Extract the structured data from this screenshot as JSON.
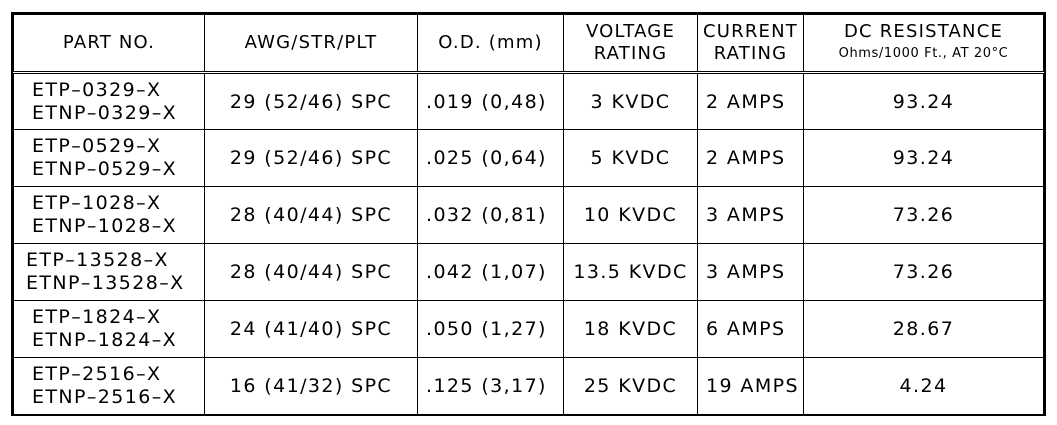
{
  "headers": {
    "part_no": "PART NO.",
    "awg": "AWG/STR/PLT",
    "od": "O.D. (mm)",
    "voltage_line1": "VOLTAGE",
    "voltage_line2": "RATING",
    "current_line1": "CURRENT",
    "current_line2": "RATING",
    "dc_line1": "DC RESISTANCE",
    "dc_line2": "Ohms/1000 Ft., AT 20°C"
  },
  "rows": [
    {
      "part1": "ETP–0329–X",
      "part2": "ETNP–0329–X",
      "awg": "29 (52/46) SPC",
      "od": ".019 (0,48)",
      "voltage": "3 KVDC",
      "current": "2 AMPS",
      "dc": "93.24"
    },
    {
      "part1": "ETP–0529–X",
      "part2": "ETNP–0529–X",
      "awg": "29 (52/46) SPC",
      "od": ".025 (0,64)",
      "voltage": "5 KVDC",
      "current": "2 AMPS",
      "dc": "93.24"
    },
    {
      "part1": "ETP–1028–X",
      "part2": "ETNP–1028–X",
      "awg": "28 (40/44) SPC",
      "od": ".032 (0,81)",
      "voltage": "10 KVDC",
      "current": "3 AMPS",
      "dc": "73.26"
    },
    {
      "part1": "ETP–13528–X",
      "part2": "ETNP–13528–X",
      "awg": "28 (40/44) SPC",
      "od": ".042 (1,07)",
      "voltage": "13.5 KVDC",
      "current": "3 AMPS",
      "dc": "73.26"
    },
    {
      "part1": "ETP–1824–X",
      "part2": "ETNP–1824–X",
      "awg": "24 (41/40) SPC",
      "od": ".050 (1,27)",
      "voltage": "18 KVDC",
      "current": "6 AMPS",
      "dc": "28.67"
    },
    {
      "part1": "ETP–2516–X",
      "part2": "ETNP–2516–X",
      "awg": "16 (41/32) SPC",
      "od": ".125 (3,17)",
      "voltage": "25 KVDC",
      "current": "19 AMPS",
      "dc": "4.24"
    }
  ]
}
